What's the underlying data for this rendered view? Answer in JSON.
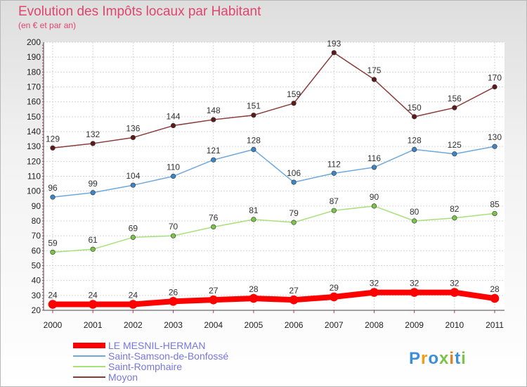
{
  "chart_data": {
    "type": "line",
    "title": "Evolution des Impôts locaux par Habitant",
    "subtitle": "(en € et par an)",
    "x": [
      "2000",
      "2001",
      "2002",
      "2003",
      "2004",
      "2005",
      "2006",
      "2007",
      "2008",
      "2009",
      "2010",
      "2011"
    ],
    "ylim": [
      20,
      200
    ],
    "yticks": [
      20,
      30,
      40,
      50,
      60,
      70,
      80,
      90,
      100,
      110,
      120,
      130,
      140,
      150,
      160,
      170,
      180,
      190,
      200
    ],
    "grid": true,
    "legend_position": "bottom-left",
    "series": [
      {
        "name": "LE MESNIL-HERMAN",
        "color": "#ff0000",
        "marker": "#ff0000",
        "width": 8,
        "values": [
          24,
          24,
          24,
          26,
          27,
          28,
          27,
          29,
          32,
          32,
          32,
          28
        ]
      },
      {
        "name": "Saint-Samson-de-Bonfossé",
        "color": "#6fa8dc",
        "marker": "#3d85c6",
        "width": 1.5,
        "values": [
          96,
          99,
          104,
          110,
          121,
          128,
          106,
          112,
          116,
          128,
          125,
          130
        ]
      },
      {
        "name": "Saint-Romphaire",
        "color": "#a8e07a",
        "marker": "#7cc34a",
        "width": 1.5,
        "values": [
          59,
          61,
          69,
          70,
          76,
          81,
          79,
          87,
          90,
          80,
          82,
          85
        ]
      },
      {
        "name": "Moyon",
        "color": "#8b3a3a",
        "marker": "#5c1a1a",
        "width": 1.5,
        "values": [
          129,
          132,
          136,
          144,
          148,
          151,
          159,
          193,
          175,
          150,
          156,
          170
        ]
      }
    ]
  },
  "brand": {
    "text": "Proxiti",
    "colors": [
      "#3b8fd6",
      "#f39c12",
      "#3b8fd6",
      "#7cc34a",
      "#e67e22",
      "#3b8fd6",
      "#7cc34a"
    ]
  }
}
